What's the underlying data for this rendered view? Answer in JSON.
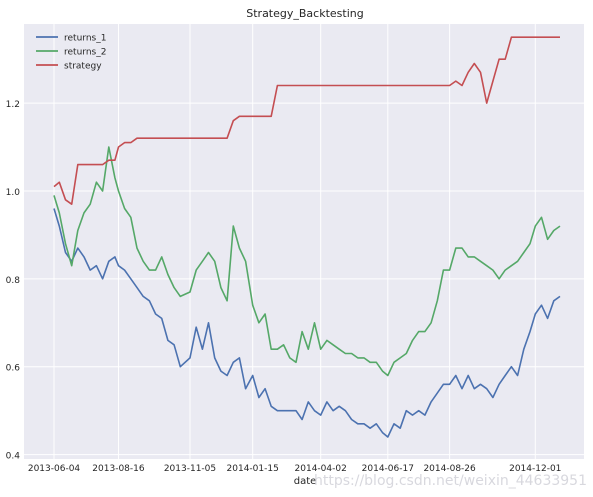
{
  "chart_data": {
    "type": "line",
    "title": "Strategy_Backtesting",
    "xlabel": "date",
    "ylabel": "",
    "x_tick_labels": [
      "2013-06-04",
      "2013-08-16",
      "2013-11-05",
      "2014-01-15",
      "2014-04-02",
      "2014-06-17",
      "2014-08-26",
      "2014-12-01"
    ],
    "y_tick_labels": [
      "0.4",
      "0.6",
      "0.8",
      "1.0",
      "1.2"
    ],
    "ylim": [
      0.39,
      1.38
    ],
    "y_ticks": [
      0.4,
      0.6,
      0.8,
      1.0,
      1.2
    ],
    "grid": true,
    "legend_position": "top-left",
    "background_color": "#eaeaf2",
    "grid_color": "#ffffff",
    "x": [
      "2013-06-04",
      "2013-06-10",
      "2013-06-17",
      "2013-06-24",
      "2013-07-01",
      "2013-07-08",
      "2013-07-15",
      "2013-07-22",
      "2013-07-29",
      "2013-08-05",
      "2013-08-12",
      "2013-08-16",
      "2013-08-23",
      "2013-08-30",
      "2013-09-06",
      "2013-09-13",
      "2013-09-20",
      "2013-09-27",
      "2013-10-04",
      "2013-10-11",
      "2013-10-18",
      "2013-10-25",
      "2013-11-05",
      "2013-11-12",
      "2013-11-19",
      "2013-11-26",
      "2013-12-03",
      "2013-12-10",
      "2013-12-17",
      "2013-12-24",
      "2013-12-31",
      "2014-01-07",
      "2014-01-15",
      "2014-01-22",
      "2014-01-29",
      "2014-02-05",
      "2014-02-12",
      "2014-02-19",
      "2014-02-26",
      "2014-03-05",
      "2014-03-12",
      "2014-03-19",
      "2014-03-26",
      "2014-04-02",
      "2014-04-09",
      "2014-04-16",
      "2014-04-23",
      "2014-04-30",
      "2014-05-07",
      "2014-05-14",
      "2014-05-21",
      "2014-05-28",
      "2014-06-04",
      "2014-06-11",
      "2014-06-17",
      "2014-06-24",
      "2014-07-01",
      "2014-07-08",
      "2014-07-15",
      "2014-07-22",
      "2014-07-29",
      "2014-08-05",
      "2014-08-12",
      "2014-08-19",
      "2014-08-26",
      "2014-09-02",
      "2014-09-09",
      "2014-09-16",
      "2014-09-23",
      "2014-09-30",
      "2014-10-07",
      "2014-10-14",
      "2014-10-21",
      "2014-10-28",
      "2014-11-04",
      "2014-11-11",
      "2014-11-18",
      "2014-11-25",
      "2014-12-01",
      "2014-12-08",
      "2014-12-15",
      "2014-12-22",
      "2014-12-29"
    ],
    "series": [
      {
        "name": "returns_1",
        "color": "#4c72b0",
        "values": [
          0.96,
          0.92,
          0.86,
          0.84,
          0.87,
          0.85,
          0.82,
          0.83,
          0.8,
          0.84,
          0.85,
          0.83,
          0.82,
          0.8,
          0.78,
          0.76,
          0.75,
          0.72,
          0.71,
          0.66,
          0.65,
          0.6,
          0.62,
          0.69,
          0.64,
          0.7,
          0.62,
          0.59,
          0.58,
          0.61,
          0.62,
          0.55,
          0.58,
          0.53,
          0.55,
          0.51,
          0.5,
          0.5,
          0.5,
          0.5,
          0.48,
          0.52,
          0.5,
          0.49,
          0.52,
          0.5,
          0.51,
          0.5,
          0.48,
          0.47,
          0.47,
          0.46,
          0.47,
          0.45,
          0.44,
          0.47,
          0.46,
          0.5,
          0.49,
          0.5,
          0.49,
          0.52,
          0.54,
          0.56,
          0.56,
          0.58,
          0.55,
          0.58,
          0.55,
          0.56,
          0.55,
          0.53,
          0.56,
          0.58,
          0.6,
          0.58,
          0.64,
          0.68,
          0.72,
          0.74,
          0.71,
          0.75,
          0.76
        ]
      },
      {
        "name": "returns_2",
        "color": "#55a868",
        "values": [
          0.99,
          0.95,
          0.88,
          0.83,
          0.91,
          0.95,
          0.97,
          1.02,
          1.0,
          1.1,
          1.03,
          1.0,
          0.96,
          0.94,
          0.87,
          0.84,
          0.82,
          0.82,
          0.85,
          0.81,
          0.78,
          0.76,
          0.77,
          0.82,
          0.84,
          0.86,
          0.84,
          0.78,
          0.75,
          0.92,
          0.87,
          0.84,
          0.74,
          0.7,
          0.72,
          0.64,
          0.64,
          0.65,
          0.62,
          0.61,
          0.68,
          0.64,
          0.7,
          0.64,
          0.66,
          0.65,
          0.64,
          0.63,
          0.63,
          0.62,
          0.62,
          0.61,
          0.61,
          0.59,
          0.58,
          0.61,
          0.62,
          0.63,
          0.66,
          0.68,
          0.68,
          0.7,
          0.75,
          0.82,
          0.82,
          0.87,
          0.87,
          0.85,
          0.85,
          0.84,
          0.83,
          0.82,
          0.8,
          0.82,
          0.83,
          0.84,
          0.86,
          0.88,
          0.92,
          0.94,
          0.89,
          0.91,
          0.92
        ]
      },
      {
        "name": "strategy",
        "color": "#c44e52",
        "values": [
          1.01,
          1.02,
          0.98,
          0.97,
          1.06,
          1.06,
          1.06,
          1.06,
          1.06,
          1.07,
          1.07,
          1.1,
          1.11,
          1.11,
          1.12,
          1.12,
          1.12,
          1.12,
          1.12,
          1.12,
          1.12,
          1.12,
          1.12,
          1.12,
          1.12,
          1.12,
          1.12,
          1.12,
          1.12,
          1.16,
          1.17,
          1.17,
          1.17,
          1.17,
          1.17,
          1.17,
          1.24,
          1.24,
          1.24,
          1.24,
          1.24,
          1.24,
          1.24,
          1.24,
          1.24,
          1.24,
          1.24,
          1.24,
          1.24,
          1.24,
          1.24,
          1.24,
          1.24,
          1.24,
          1.24,
          1.24,
          1.24,
          1.24,
          1.24,
          1.24,
          1.24,
          1.24,
          1.24,
          1.24,
          1.24,
          1.25,
          1.24,
          1.27,
          1.29,
          1.27,
          1.2,
          1.25,
          1.3,
          1.3,
          1.35,
          1.35,
          1.35,
          1.35,
          1.35,
          1.35,
          1.35,
          1.35,
          1.35
        ]
      }
    ]
  },
  "watermark_text": "https://blog.csdn.net/weixin_44633951"
}
